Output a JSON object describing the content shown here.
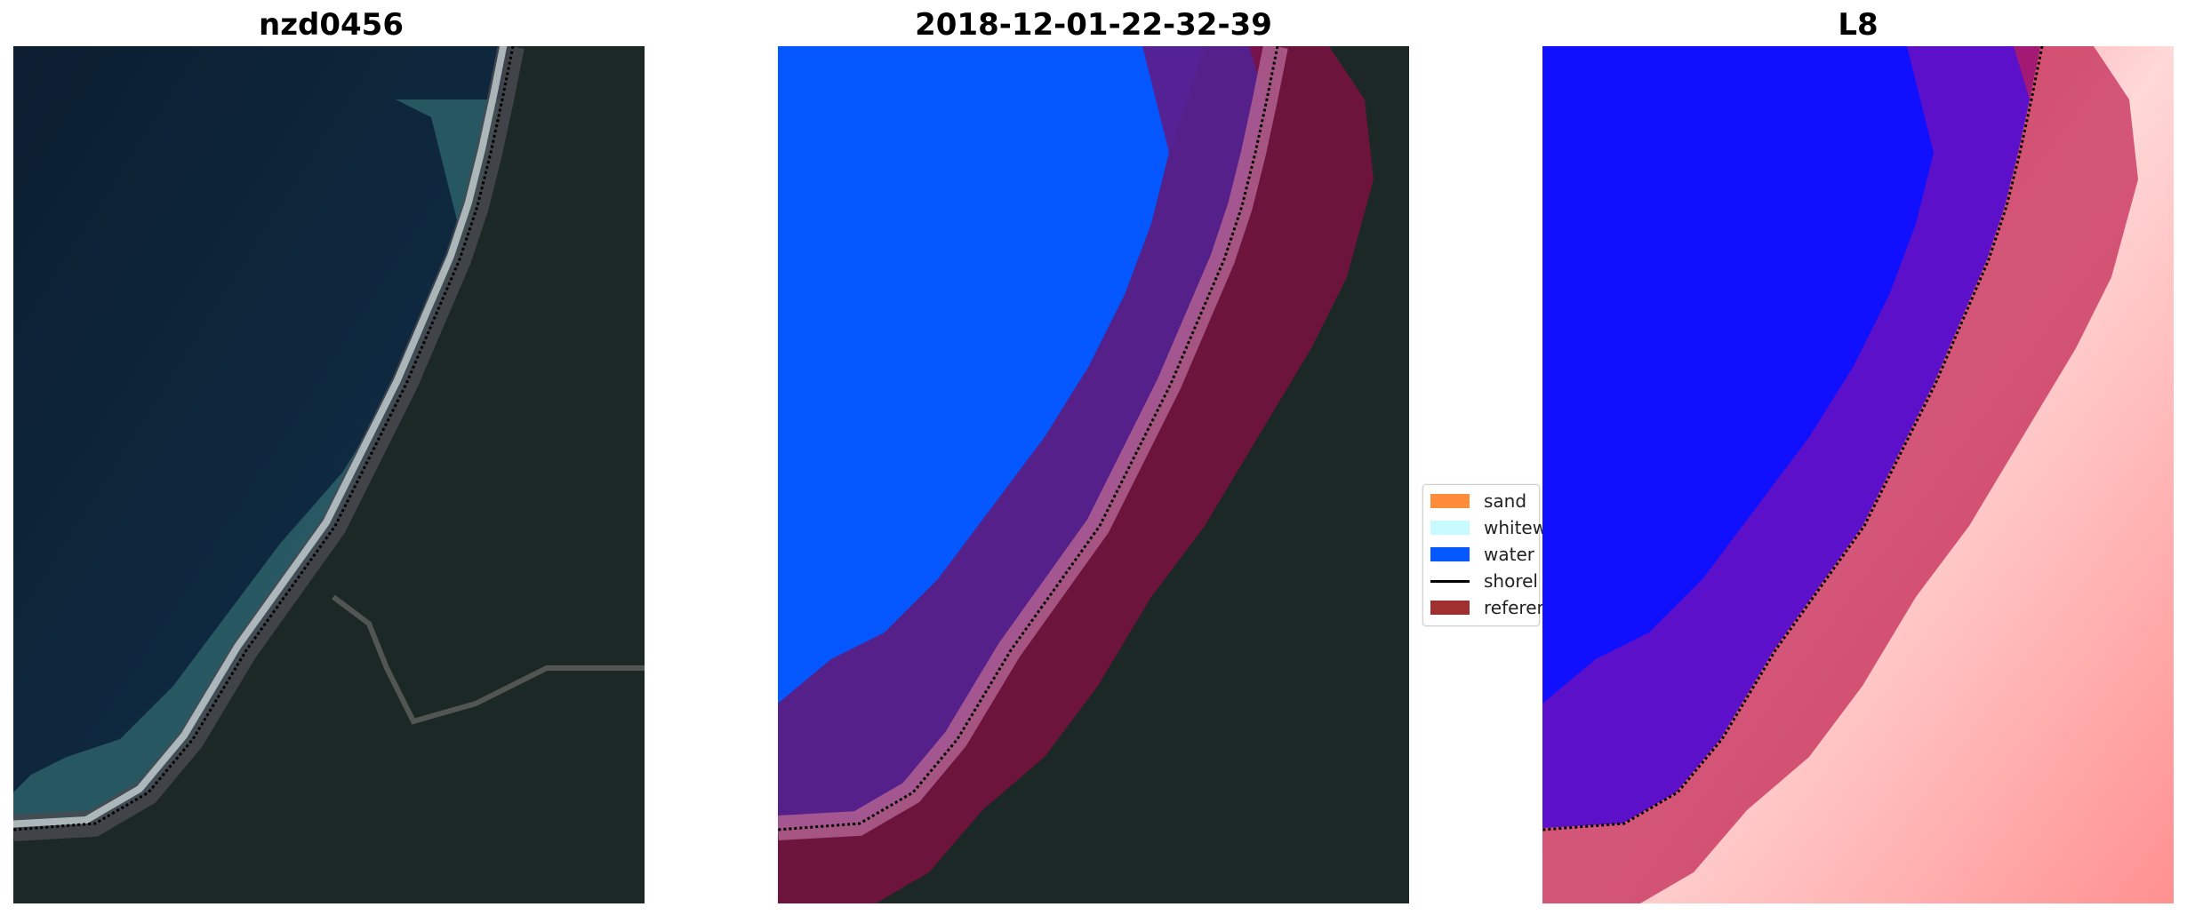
{
  "panels": [
    {
      "title": "nzd0456",
      "kind": "rgb-image"
    },
    {
      "title": "2018-12-01-22-32-39",
      "kind": "classified-image"
    },
    {
      "title": "L8",
      "kind": "index-image"
    }
  ],
  "legend": {
    "items": [
      {
        "label": "sand",
        "color": "#ff8c3a"
      },
      {
        "label": "whitew",
        "color": "#c8fbff"
      },
      {
        "label": "water",
        "color": "#0557ff"
      },
      {
        "label": "shorel",
        "color": "#000000"
      },
      {
        "label": "referen",
        "color": "#a03030"
      }
    ]
  },
  "colors": {
    "ocean": "#0d2036",
    "land": "#1c2a28",
    "water_class": "#0557ff",
    "reference_buffer": "#8b1030",
    "index_water": "#1010ff",
    "index_land": "#ff5050"
  }
}
